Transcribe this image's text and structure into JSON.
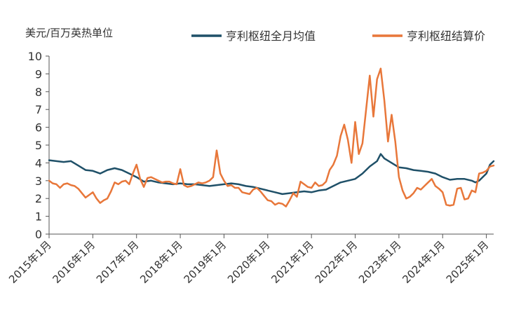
{
  "chart_data": {
    "type": "line",
    "ylabel": "美元/百万英热单位",
    "ylim": [
      0,
      10
    ],
    "yticks": [
      0,
      1,
      2,
      3,
      4,
      5,
      6,
      7,
      8,
      9,
      10
    ],
    "xlim": [
      "2015-01",
      "2025-03"
    ],
    "xticks": [
      {
        "label": "2015年1月",
        "month": "2015-01"
      },
      {
        "label": "2016年1月",
        "month": "2016-01"
      },
      {
        "label": "2017年1月",
        "month": "2017-01"
      },
      {
        "label": "2018年1月",
        "month": "2018-01"
      },
      {
        "label": "2019年1月",
        "month": "2019-01"
      },
      {
        "label": "2020年1月",
        "month": "2020-01"
      },
      {
        "label": "2021年1月",
        "month": "2021-01"
      },
      {
        "label": "2022年1月",
        "month": "2022-01"
      },
      {
        "label": "2023年1月",
        "month": "2023-01"
      },
      {
        "label": "2024年1月",
        "month": "2024-01"
      },
      {
        "label": "2025年1月",
        "month": "2025-01"
      }
    ],
    "grid": false,
    "legend": "top",
    "series": [
      {
        "name": "亨利枢纽全月均值",
        "color": "#1f5068",
        "points": [
          [
            "2015-01",
            4.15
          ],
          [
            "2015-03",
            4.1
          ],
          [
            "2015-05",
            4.05
          ],
          [
            "2015-07",
            4.1
          ],
          [
            "2015-09",
            3.85
          ],
          [
            "2015-11",
            3.6
          ],
          [
            "2016-01",
            3.55
          ],
          [
            "2016-03",
            3.4
          ],
          [
            "2016-05",
            3.6
          ],
          [
            "2016-07",
            3.7
          ],
          [
            "2016-09",
            3.6
          ],
          [
            "2016-11",
            3.4
          ],
          [
            "2017-01",
            3.2
          ],
          [
            "2017-03",
            2.95
          ],
          [
            "2017-05",
            3.0
          ],
          [
            "2017-07",
            2.9
          ],
          [
            "2017-09",
            2.85
          ],
          [
            "2017-11",
            2.8
          ],
          [
            "2018-01",
            2.85
          ],
          [
            "2018-03",
            2.8
          ],
          [
            "2018-05",
            2.8
          ],
          [
            "2018-07",
            2.75
          ],
          [
            "2018-09",
            2.7
          ],
          [
            "2018-11",
            2.75
          ],
          [
            "2019-01",
            2.8
          ],
          [
            "2019-03",
            2.85
          ],
          [
            "2019-05",
            2.8
          ],
          [
            "2019-07",
            2.7
          ],
          [
            "2019-09",
            2.65
          ],
          [
            "2019-11",
            2.55
          ],
          [
            "2020-01",
            2.45
          ],
          [
            "2020-03",
            2.35
          ],
          [
            "2020-05",
            2.25
          ],
          [
            "2020-07",
            2.3
          ],
          [
            "2020-09",
            2.35
          ],
          [
            "2020-11",
            2.4
          ],
          [
            "2021-01",
            2.35
          ],
          [
            "2021-03",
            2.45
          ],
          [
            "2021-05",
            2.5
          ],
          [
            "2021-07",
            2.7
          ],
          [
            "2021-09",
            2.9
          ],
          [
            "2021-11",
            3.0
          ],
          [
            "2022-01",
            3.1
          ],
          [
            "2022-03",
            3.4
          ],
          [
            "2022-05",
            3.8
          ],
          [
            "2022-07",
            4.1
          ],
          [
            "2022-08",
            4.5
          ],
          [
            "2022-09",
            4.25
          ],
          [
            "2022-11",
            4.0
          ],
          [
            "2023-01",
            3.75
          ],
          [
            "2023-03",
            3.7
          ],
          [
            "2023-05",
            3.6
          ],
          [
            "2023-07",
            3.55
          ],
          [
            "2023-09",
            3.5
          ],
          [
            "2023-11",
            3.4
          ],
          [
            "2024-01",
            3.2
          ],
          [
            "2024-03",
            3.05
          ],
          [
            "2024-05",
            3.1
          ],
          [
            "2024-07",
            3.1
          ],
          [
            "2024-09",
            3.0
          ],
          [
            "2024-10",
            2.9
          ],
          [
            "2024-11",
            3.0
          ],
          [
            "2025-01",
            3.4
          ],
          [
            "2025-02",
            3.9
          ],
          [
            "2025-03",
            4.1
          ]
        ]
      },
      {
        "name": "亨利枢纽结算价",
        "color": "#e8773a",
        "points": [
          [
            "2015-01",
            3.0
          ],
          [
            "2015-02",
            2.85
          ],
          [
            "2015-03",
            2.8
          ],
          [
            "2015-04",
            2.6
          ],
          [
            "2015-05",
            2.8
          ],
          [
            "2015-06",
            2.85
          ],
          [
            "2015-07",
            2.75
          ],
          [
            "2015-08",
            2.7
          ],
          [
            "2015-09",
            2.55
          ],
          [
            "2015-10",
            2.3
          ],
          [
            "2015-11",
            2.05
          ],
          [
            "2015-12",
            2.2
          ],
          [
            "2016-01",
            2.35
          ],
          [
            "2016-02",
            2.0
          ],
          [
            "2016-03",
            1.75
          ],
          [
            "2016-04",
            1.9
          ],
          [
            "2016-05",
            2.0
          ],
          [
            "2016-06",
            2.4
          ],
          [
            "2016-07",
            2.9
          ],
          [
            "2016-08",
            2.8
          ],
          [
            "2016-09",
            2.95
          ],
          [
            "2016-10",
            3.0
          ],
          [
            "2016-11",
            2.8
          ],
          [
            "2016-12",
            3.4
          ],
          [
            "2017-01",
            3.9
          ],
          [
            "2017-02",
            3.1
          ],
          [
            "2017-03",
            2.65
          ],
          [
            "2017-04",
            3.15
          ],
          [
            "2017-05",
            3.2
          ],
          [
            "2017-06",
            3.1
          ],
          [
            "2017-07",
            3.0
          ],
          [
            "2017-08",
            2.9
          ],
          [
            "2017-09",
            2.95
          ],
          [
            "2017-10",
            2.95
          ],
          [
            "2017-11",
            2.85
          ],
          [
            "2017-12",
            2.8
          ],
          [
            "2018-01",
            3.65
          ],
          [
            "2018-02",
            2.75
          ],
          [
            "2018-03",
            2.65
          ],
          [
            "2018-04",
            2.7
          ],
          [
            "2018-05",
            2.8
          ],
          [
            "2018-06",
            2.9
          ],
          [
            "2018-07",
            2.85
          ],
          [
            "2018-08",
            2.9
          ],
          [
            "2018-09",
            3.0
          ],
          [
            "2018-10",
            3.2
          ],
          [
            "2018-11",
            4.7
          ],
          [
            "2018-12",
            3.4
          ],
          [
            "2019-01",
            3.0
          ],
          [
            "2019-02",
            2.7
          ],
          [
            "2019-03",
            2.75
          ],
          [
            "2019-04",
            2.6
          ],
          [
            "2019-05",
            2.6
          ],
          [
            "2019-06",
            2.35
          ],
          [
            "2019-07",
            2.3
          ],
          [
            "2019-08",
            2.25
          ],
          [
            "2019-09",
            2.5
          ],
          [
            "2019-10",
            2.6
          ],
          [
            "2019-11",
            2.4
          ],
          [
            "2019-12",
            2.15
          ],
          [
            "2020-01",
            1.9
          ],
          [
            "2020-02",
            1.85
          ],
          [
            "2020-03",
            1.65
          ],
          [
            "2020-04",
            1.75
          ],
          [
            "2020-05",
            1.7
          ],
          [
            "2020-06",
            1.55
          ],
          [
            "2020-07",
            1.9
          ],
          [
            "2020-08",
            2.3
          ],
          [
            "2020-09",
            2.1
          ],
          [
            "2020-10",
            2.95
          ],
          [
            "2020-11",
            2.8
          ],
          [
            "2020-12",
            2.65
          ],
          [
            "2021-01",
            2.6
          ],
          [
            "2021-02",
            2.9
          ],
          [
            "2021-03",
            2.7
          ],
          [
            "2021-04",
            2.75
          ],
          [
            "2021-05",
            2.95
          ],
          [
            "2021-06",
            3.6
          ],
          [
            "2021-07",
            3.9
          ],
          [
            "2021-08",
            4.4
          ],
          [
            "2021-09",
            5.5
          ],
          [
            "2021-10",
            6.15
          ],
          [
            "2021-11",
            5.3
          ],
          [
            "2021-12",
            4.0
          ],
          [
            "2022-01",
            6.3
          ],
          [
            "2022-02",
            4.5
          ],
          [
            "2022-03",
            5.1
          ],
          [
            "2022-04",
            7.0
          ],
          [
            "2022-05",
            8.9
          ],
          [
            "2022-06",
            6.6
          ],
          [
            "2022-07",
            8.7
          ],
          [
            "2022-08",
            9.3
          ],
          [
            "2022-09",
            7.5
          ],
          [
            "2022-10",
            5.2
          ],
          [
            "2022-11",
            6.7
          ],
          [
            "2022-12",
            5.2
          ],
          [
            "2023-01",
            3.2
          ],
          [
            "2023-02",
            2.45
          ],
          [
            "2023-03",
            2.0
          ],
          [
            "2023-04",
            2.1
          ],
          [
            "2023-05",
            2.3
          ],
          [
            "2023-06",
            2.6
          ],
          [
            "2023-07",
            2.5
          ],
          [
            "2023-08",
            2.7
          ],
          [
            "2023-09",
            2.9
          ],
          [
            "2023-10",
            3.1
          ],
          [
            "2023-11",
            2.7
          ],
          [
            "2023-12",
            2.55
          ],
          [
            "2024-01",
            2.35
          ],
          [
            "2024-02",
            1.65
          ],
          [
            "2024-03",
            1.6
          ],
          [
            "2024-04",
            1.65
          ],
          [
            "2024-05",
            2.55
          ],
          [
            "2024-06",
            2.6
          ],
          [
            "2024-07",
            1.95
          ],
          [
            "2024-08",
            2.0
          ],
          [
            "2024-09",
            2.45
          ],
          [
            "2024-10",
            2.35
          ],
          [
            "2024-11",
            3.4
          ],
          [
            "2024-12",
            3.45
          ],
          [
            "2025-01",
            3.55
          ],
          [
            "2025-02",
            3.8
          ],
          [
            "2025-03",
            3.85
          ]
        ]
      }
    ]
  }
}
